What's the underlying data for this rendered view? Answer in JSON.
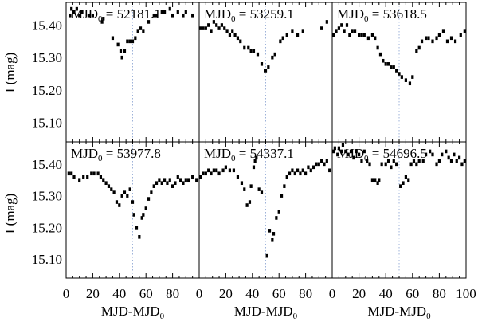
{
  "chart_data": {
    "type": "scatter",
    "layout": "2x3 panel grid, shared axes",
    "xlabel": "MJD-MJD0",
    "ylabel": "I (mag)",
    "xlim": [
      0,
      100
    ],
    "ylim": [
      15.47,
      15.04
    ],
    "y_inverted": true,
    "x_ticks": [
      0,
      20,
      40,
      60,
      80,
      100
    ],
    "x_tick_labels": [
      "0",
      "20",
      "40",
      "60",
      "80",
      "100"
    ],
    "y_ticks": [
      15.1,
      15.2,
      15.3,
      15.4
    ],
    "y_tick_labels": [
      "15.10",
      "15.20",
      "15.30",
      "15.40"
    ],
    "reference_line_x": 50,
    "marker_color": "#000000",
    "reference_line_color": "#9db2d9",
    "panels": [
      {
        "mjd0": "52181.1",
        "points": [
          [
            3,
            15.43
          ],
          [
            4,
            15.45
          ],
          [
            6,
            15.44
          ],
          [
            8,
            15.45
          ],
          [
            10,
            15.43
          ],
          [
            12,
            15.44
          ],
          [
            17,
            15.43
          ],
          [
            20,
            15.43
          ],
          [
            27,
            15.41
          ],
          [
            28,
            15.42
          ],
          [
            35,
            15.36
          ],
          [
            39,
            15.34
          ],
          [
            41,
            15.32
          ],
          [
            42,
            15.3
          ],
          [
            44,
            15.32
          ],
          [
            46,
            15.35
          ],
          [
            48,
            15.35
          ],
          [
            50,
            15.35
          ],
          [
            52,
            15.36
          ],
          [
            54,
            15.38
          ],
          [
            56,
            15.39
          ],
          [
            58,
            15.38
          ],
          [
            62,
            15.41
          ],
          [
            66,
            15.43
          ],
          [
            68,
            15.43
          ],
          [
            72,
            15.44
          ],
          [
            74,
            15.44
          ],
          [
            78,
            15.45
          ],
          [
            80,
            15.43
          ],
          [
            84,
            15.44
          ],
          [
            88,
            15.43
          ],
          [
            90,
            15.44
          ],
          [
            95,
            15.43
          ]
        ]
      },
      {
        "mjd0": "53259.1",
        "points": [
          [
            1,
            15.39
          ],
          [
            3,
            15.39
          ],
          [
            5,
            15.39
          ],
          [
            7,
            15.4
          ],
          [
            9,
            15.38
          ],
          [
            11,
            15.41
          ],
          [
            13,
            15.4
          ],
          [
            15,
            15.39
          ],
          [
            17,
            15.4
          ],
          [
            19,
            15.39
          ],
          [
            21,
            15.38
          ],
          [
            23,
            15.37
          ],
          [
            25,
            15.38
          ],
          [
            27,
            15.37
          ],
          [
            29,
            15.36
          ],
          [
            31,
            15.35
          ],
          [
            34,
            15.33
          ],
          [
            37,
            15.33
          ],
          [
            39,
            15.32
          ],
          [
            41,
            15.32
          ],
          [
            44,
            15.31
          ],
          [
            47,
            15.28
          ],
          [
            50,
            15.26
          ],
          [
            52,
            15.27
          ],
          [
            55,
            15.3
          ],
          [
            57,
            15.31
          ],
          [
            61,
            15.35
          ],
          [
            63,
            15.36
          ],
          [
            66,
            15.37
          ],
          [
            70,
            15.38
          ],
          [
            74,
            15.37
          ],
          [
            78,
            15.38
          ],
          [
            92,
            15.39
          ],
          [
            96,
            15.41
          ]
        ]
      },
      {
        "mjd0": "53618.5",
        "points": [
          [
            1,
            15.37
          ],
          [
            3,
            15.38
          ],
          [
            5,
            15.39
          ],
          [
            7,
            15.4
          ],
          [
            9,
            15.38
          ],
          [
            11,
            15.4
          ],
          [
            13,
            15.37
          ],
          [
            15,
            15.38
          ],
          [
            17,
            15.38
          ],
          [
            20,
            15.37
          ],
          [
            22,
            15.37
          ],
          [
            24,
            15.37
          ],
          [
            27,
            15.36
          ],
          [
            30,
            15.37
          ],
          [
            32,
            15.36
          ],
          [
            34,
            15.33
          ],
          [
            36,
            15.31
          ],
          [
            38,
            15.29
          ],
          [
            40,
            15.28
          ],
          [
            42,
            15.28
          ],
          [
            44,
            15.27
          ],
          [
            46,
            15.27
          ],
          [
            48,
            15.26
          ],
          [
            50,
            15.25
          ],
          [
            52,
            15.24
          ],
          [
            55,
            15.23
          ],
          [
            58,
            15.22
          ],
          [
            60,
            15.24
          ],
          [
            63,
            15.32
          ],
          [
            65,
            15.33
          ],
          [
            67,
            15.35
          ],
          [
            70,
            15.36
          ],
          [
            72,
            15.36
          ],
          [
            75,
            15.35
          ],
          [
            78,
            15.36
          ],
          [
            80,
            15.37
          ],
          [
            83,
            15.38
          ],
          [
            86,
            15.35
          ],
          [
            89,
            15.36
          ],
          [
            92,
            15.35
          ],
          [
            96,
            15.37
          ],
          [
            99,
            15.38
          ]
        ]
      },
      {
        "mjd0": "53977.8",
        "points": [
          [
            2,
            15.37
          ],
          [
            4,
            15.37
          ],
          [
            6,
            15.36
          ],
          [
            10,
            15.35
          ],
          [
            13,
            15.36
          ],
          [
            16,
            15.36
          ],
          [
            19,
            15.37
          ],
          [
            21,
            15.37
          ],
          [
            24,
            15.37
          ],
          [
            26,
            15.36
          ],
          [
            28,
            15.35
          ],
          [
            30,
            15.34
          ],
          [
            32,
            15.33
          ],
          [
            34,
            15.32
          ],
          [
            36,
            15.31
          ],
          [
            38,
            15.28
          ],
          [
            40,
            15.27
          ],
          [
            42,
            15.3
          ],
          [
            44,
            15.31
          ],
          [
            46,
            15.3
          ],
          [
            48,
            15.32
          ],
          [
            50,
            15.28
          ],
          [
            51,
            15.24
          ],
          [
            53,
            15.2
          ],
          [
            55,
            15.17
          ],
          [
            57,
            15.23
          ],
          [
            58,
            15.24
          ],
          [
            60,
            15.26
          ],
          [
            62,
            15.29
          ],
          [
            64,
            15.31
          ],
          [
            66,
            15.33
          ],
          [
            68,
            15.34
          ],
          [
            70,
            15.35
          ],
          [
            72,
            15.34
          ],
          [
            74,
            15.35
          ],
          [
            76,
            15.34
          ],
          [
            78,
            15.35
          ],
          [
            80,
            15.33
          ],
          [
            82,
            15.34
          ],
          [
            84,
            15.36
          ],
          [
            86,
            15.35
          ],
          [
            88,
            15.34
          ],
          [
            90,
            15.35
          ],
          [
            92,
            15.35
          ],
          [
            95,
            15.36
          ],
          [
            98,
            15.35
          ]
        ]
      },
      {
        "mjd0": "54337.1",
        "points": [
          [
            1,
            15.36
          ],
          [
            3,
            15.37
          ],
          [
            5,
            15.37
          ],
          [
            7,
            15.38
          ],
          [
            9,
            15.37
          ],
          [
            11,
            15.38
          ],
          [
            13,
            15.38
          ],
          [
            15,
            15.37
          ],
          [
            18,
            15.38
          ],
          [
            20,
            15.39
          ],
          [
            23,
            15.38
          ],
          [
            26,
            15.38
          ],
          [
            29,
            15.36
          ],
          [
            32,
            15.34
          ],
          [
            34,
            15.32
          ],
          [
            36,
            15.27
          ],
          [
            38,
            15.28
          ],
          [
            39,
            15.33
          ],
          [
            41,
            15.39
          ],
          [
            42,
            15.41
          ],
          [
            43,
            15.42
          ],
          [
            45,
            15.32
          ],
          [
            47,
            15.31
          ],
          [
            51,
            15.11
          ],
          [
            53,
            15.19
          ],
          [
            55,
            15.16
          ],
          [
            56,
            15.18
          ],
          [
            58,
            15.23
          ],
          [
            60,
            15.25
          ],
          [
            62,
            15.3
          ],
          [
            64,
            15.33
          ],
          [
            66,
            15.36
          ],
          [
            68,
            15.37
          ],
          [
            70,
            15.38
          ],
          [
            72,
            15.37
          ],
          [
            74,
            15.38
          ],
          [
            76,
            15.37
          ],
          [
            78,
            15.38
          ],
          [
            80,
            15.37
          ],
          [
            82,
            15.39
          ],
          [
            84,
            15.38
          ],
          [
            86,
            15.39
          ],
          [
            88,
            15.4
          ],
          [
            90,
            15.4
          ],
          [
            92,
            15.41
          ],
          [
            94,
            15.4
          ],
          [
            96,
            15.41
          ],
          [
            98,
            15.38
          ]
        ]
      },
      {
        "mjd0": "54696.5",
        "points": [
          [
            1,
            15.44
          ],
          [
            2,
            15.45
          ],
          [
            4,
            15.43
          ],
          [
            5,
            15.45
          ],
          [
            7,
            15.44
          ],
          [
            8,
            15.46
          ],
          [
            10,
            15.44
          ],
          [
            12,
            15.43
          ],
          [
            14,
            15.44
          ],
          [
            16,
            15.42
          ],
          [
            18,
            15.44
          ],
          [
            20,
            15.43
          ],
          [
            22,
            15.41
          ],
          [
            24,
            15.44
          ],
          [
            26,
            15.41
          ],
          [
            28,
            15.4
          ],
          [
            30,
            15.35
          ],
          [
            32,
            15.35
          ],
          [
            34,
            15.34
          ],
          [
            35,
            15.35
          ],
          [
            37,
            15.4
          ],
          [
            40,
            15.4
          ],
          [
            42,
            15.41
          ],
          [
            44,
            15.39
          ],
          [
            46,
            15.41
          ],
          [
            48,
            15.4
          ],
          [
            51,
            15.33
          ],
          [
            53,
            15.34
          ],
          [
            55,
            15.36
          ],
          [
            57,
            15.35
          ],
          [
            59,
            15.4
          ],
          [
            61,
            15.41
          ],
          [
            63,
            15.4
          ],
          [
            65,
            15.41
          ],
          [
            68,
            15.41
          ],
          [
            70,
            15.43
          ],
          [
            73,
            15.44
          ],
          [
            75,
            15.43
          ],
          [
            78,
            15.4
          ],
          [
            80,
            15.41
          ],
          [
            82,
            15.43
          ],
          [
            85,
            15.44
          ],
          [
            87,
            15.42
          ],
          [
            89,
            15.41
          ],
          [
            91,
            15.43
          ],
          [
            93,
            15.41
          ],
          [
            95,
            15.42
          ],
          [
            97,
            15.4
          ],
          [
            99,
            15.41
          ]
        ]
      }
    ]
  }
}
